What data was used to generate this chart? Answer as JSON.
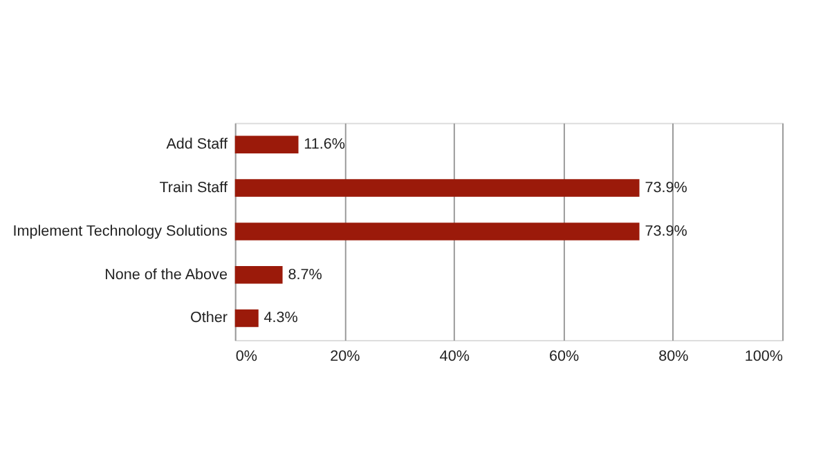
{
  "chart_data": {
    "type": "bar",
    "orientation": "horizontal",
    "categories": [
      "Add Staff",
      "Train Staff",
      "Implement Technology Solutions",
      "None of the Above",
      "Other"
    ],
    "values": [
      11.6,
      73.9,
      73.9,
      8.7,
      4.3
    ],
    "value_labels": [
      "11.6%",
      "73.9%",
      "73.9%",
      "8.7%",
      "4.3%"
    ],
    "color": "#9b1a0a",
    "xlim": [
      0,
      100
    ],
    "xticks": [
      {
        "value": 0,
        "label": "0%"
      },
      {
        "value": 20,
        "label": "20%"
      },
      {
        "value": 40,
        "label": "40%"
      },
      {
        "value": 60,
        "label": "60%"
      },
      {
        "value": 80,
        "label": "80%"
      },
      {
        "value": 100,
        "label": "100%"
      }
    ],
    "grid": "x"
  }
}
